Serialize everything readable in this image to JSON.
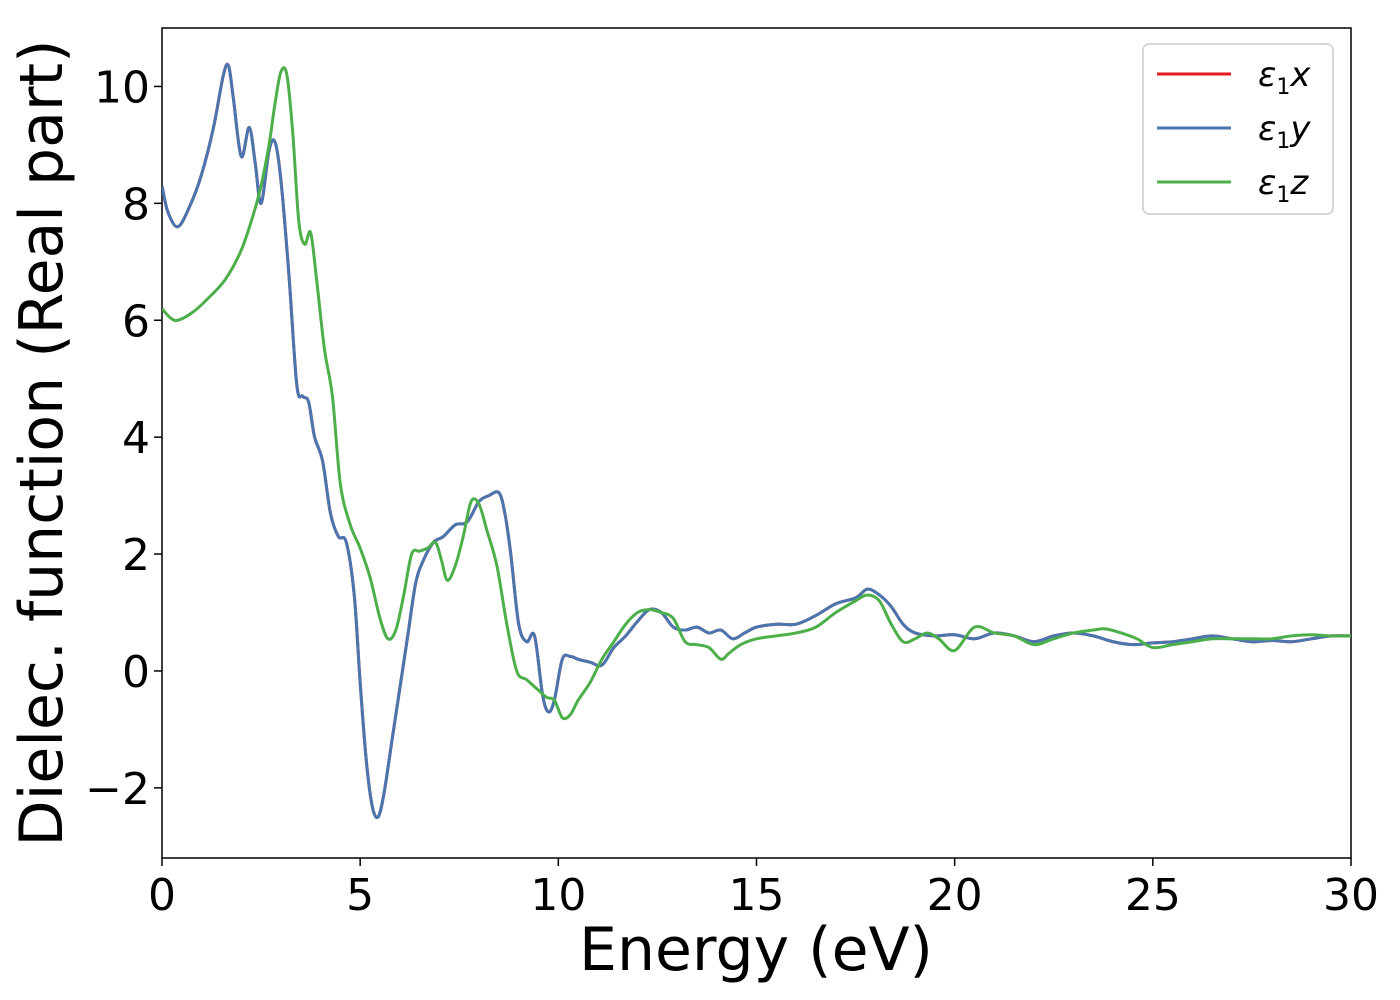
{
  "chart_data": {
    "type": "line",
    "xlabel": "Energy (eV)",
    "ylabel": "Dielec. function (Real part)",
    "xlim": [
      0,
      30
    ],
    "ylim": [
      -3.2,
      11.0
    ],
    "xticks": [
      0,
      5,
      10,
      15,
      20,
      25,
      30
    ],
    "yticks": [
      -2,
      0,
      2,
      4,
      6,
      8,
      10
    ],
    "ytick_labels": [
      "−2",
      "0",
      "2",
      "4",
      "6",
      "8",
      "10"
    ],
    "grid": false,
    "legend": {
      "placement": "top-right"
    },
    "series": [
      {
        "name": "ε1x",
        "legend_main": "ε",
        "legend_sub": "1",
        "legend_var": "x",
        "color": "#e41a1c",
        "x": [
          0,
          0.15,
          0.4,
          0.7,
          1.0,
          1.3,
          1.55,
          1.68,
          1.8,
          2.0,
          2.2,
          2.35,
          2.5,
          2.7,
          2.85,
          3.0,
          3.2,
          3.4,
          3.55,
          3.7,
          3.85,
          4.05,
          4.25,
          4.45,
          4.65,
          4.85,
          5.0,
          5.15,
          5.3,
          5.45,
          5.6,
          5.8,
          6.0,
          6.2,
          6.4,
          6.6,
          6.85,
          7.1,
          7.4,
          7.7,
          8.0,
          8.25,
          8.5,
          8.65,
          8.8,
          9.0,
          9.2,
          9.4,
          9.6,
          9.75,
          9.9,
          10.1,
          10.3,
          10.5,
          10.8,
          11.1,
          11.4,
          11.7,
          12.0,
          12.3,
          12.6,
          12.9,
          13.2,
          13.5,
          13.8,
          14.1,
          14.4,
          14.7,
          15.0,
          15.5,
          16.0,
          16.5,
          17.0,
          17.5,
          17.8,
          18.1,
          18.4,
          18.7,
          19.0,
          19.5,
          20.0,
          20.5,
          21.0,
          21.5,
          22.0,
          22.5,
          23.0,
          23.5,
          24.0,
          24.5,
          25.0,
          25.5,
          26.0,
          26.5,
          27.0,
          27.5,
          28.0,
          28.5,
          29.0,
          29.5,
          30.0
        ],
        "y": [
          8.3,
          7.85,
          7.6,
          7.95,
          8.5,
          9.3,
          10.2,
          10.35,
          9.8,
          8.8,
          9.3,
          8.7,
          8.0,
          8.9,
          9.05,
          8.4,
          6.8,
          4.9,
          4.7,
          4.6,
          4.0,
          3.6,
          2.7,
          2.3,
          2.2,
          1.3,
          -0.2,
          -1.5,
          -2.3,
          -2.5,
          -2.1,
          -1.2,
          -0.3,
          0.6,
          1.5,
          1.9,
          2.2,
          2.3,
          2.5,
          2.55,
          2.9,
          3.0,
          3.05,
          2.7,
          2.0,
          0.8,
          0.5,
          0.6,
          -0.4,
          -0.7,
          -0.5,
          0.2,
          0.25,
          0.2,
          0.15,
          0.1,
          0.4,
          0.6,
          0.85,
          1.05,
          1.0,
          0.75,
          0.7,
          0.75,
          0.65,
          0.7,
          0.55,
          0.65,
          0.75,
          0.8,
          0.8,
          0.95,
          1.15,
          1.25,
          1.4,
          1.3,
          1.1,
          0.8,
          0.65,
          0.6,
          0.62,
          0.55,
          0.65,
          0.6,
          0.5,
          0.6,
          0.65,
          0.6,
          0.5,
          0.45,
          0.48,
          0.5,
          0.55,
          0.6,
          0.55,
          0.5,
          0.52,
          0.5,
          0.55,
          0.6,
          0.6
        ]
      },
      {
        "name": "ε1y",
        "legend_main": "ε",
        "legend_sub": "1",
        "legend_var": "y",
        "color": "#4a76b0",
        "x": [
          0,
          0.15,
          0.4,
          0.7,
          1.0,
          1.3,
          1.55,
          1.68,
          1.8,
          2.0,
          2.2,
          2.35,
          2.5,
          2.7,
          2.85,
          3.0,
          3.2,
          3.4,
          3.55,
          3.7,
          3.85,
          4.05,
          4.25,
          4.45,
          4.65,
          4.85,
          5.0,
          5.15,
          5.3,
          5.45,
          5.6,
          5.8,
          6.0,
          6.2,
          6.4,
          6.6,
          6.85,
          7.1,
          7.4,
          7.7,
          8.0,
          8.25,
          8.5,
          8.65,
          8.8,
          9.0,
          9.2,
          9.4,
          9.6,
          9.75,
          9.9,
          10.1,
          10.3,
          10.5,
          10.8,
          11.1,
          11.4,
          11.7,
          12.0,
          12.3,
          12.6,
          12.9,
          13.2,
          13.5,
          13.8,
          14.1,
          14.4,
          14.7,
          15.0,
          15.5,
          16.0,
          16.5,
          17.0,
          17.5,
          17.8,
          18.1,
          18.4,
          18.7,
          19.0,
          19.5,
          20.0,
          20.5,
          21.0,
          21.5,
          22.0,
          22.5,
          23.0,
          23.5,
          24.0,
          24.5,
          25.0,
          25.5,
          26.0,
          26.5,
          27.0,
          27.5,
          28.0,
          28.5,
          29.0,
          29.5,
          30.0
        ],
        "y": [
          8.3,
          7.85,
          7.6,
          7.95,
          8.5,
          9.3,
          10.2,
          10.35,
          9.8,
          8.8,
          9.3,
          8.7,
          8.0,
          8.9,
          9.05,
          8.4,
          6.8,
          4.9,
          4.7,
          4.6,
          4.0,
          3.6,
          2.7,
          2.3,
          2.2,
          1.3,
          -0.2,
          -1.5,
          -2.3,
          -2.5,
          -2.1,
          -1.2,
          -0.3,
          0.6,
          1.5,
          1.9,
          2.2,
          2.3,
          2.5,
          2.55,
          2.9,
          3.0,
          3.05,
          2.7,
          2.0,
          0.8,
          0.5,
          0.6,
          -0.4,
          -0.7,
          -0.5,
          0.2,
          0.25,
          0.2,
          0.15,
          0.1,
          0.4,
          0.6,
          0.85,
          1.05,
          1.0,
          0.75,
          0.7,
          0.75,
          0.65,
          0.7,
          0.55,
          0.65,
          0.75,
          0.8,
          0.8,
          0.95,
          1.15,
          1.25,
          1.4,
          1.3,
          1.1,
          0.8,
          0.65,
          0.6,
          0.62,
          0.55,
          0.65,
          0.6,
          0.5,
          0.6,
          0.65,
          0.6,
          0.5,
          0.45,
          0.48,
          0.5,
          0.55,
          0.6,
          0.55,
          0.5,
          0.52,
          0.5,
          0.55,
          0.6,
          0.6
        ]
      },
      {
        "name": "ε1z",
        "legend_main": "ε",
        "legend_sub": "1",
        "legend_var": "z",
        "color": "#4daf4a",
        "x": [
          0,
          0.2,
          0.4,
          0.8,
          1.2,
          1.6,
          2.0,
          2.3,
          2.5,
          2.7,
          2.85,
          3.0,
          3.15,
          3.3,
          3.45,
          3.6,
          3.75,
          3.9,
          4.1,
          4.3,
          4.5,
          4.75,
          5.0,
          5.25,
          5.5,
          5.7,
          5.9,
          6.1,
          6.3,
          6.5,
          6.7,
          6.9,
          7.05,
          7.2,
          7.4,
          7.6,
          7.8,
          8.0,
          8.2,
          8.45,
          8.7,
          8.95,
          9.2,
          9.45,
          9.7,
          9.9,
          10.1,
          10.3,
          10.5,
          10.8,
          11.1,
          11.4,
          11.7,
          12.0,
          12.3,
          12.6,
          12.9,
          13.2,
          13.5,
          13.8,
          14.1,
          14.3,
          14.6,
          15.0,
          15.5,
          16.0,
          16.5,
          17.0,
          17.5,
          17.8,
          18.1,
          18.4,
          18.7,
          19.0,
          19.3,
          19.6,
          20.0,
          20.5,
          21.0,
          21.5,
          22.0,
          22.5,
          23.0,
          23.5,
          23.8,
          24.2,
          24.6,
          25.0,
          25.5,
          26.0,
          26.5,
          27.0,
          27.5,
          28.0,
          28.5,
          29.0,
          29.5,
          30.0
        ],
        "y": [
          6.2,
          6.05,
          6.0,
          6.15,
          6.4,
          6.7,
          7.2,
          7.8,
          8.3,
          9.0,
          9.7,
          10.25,
          10.2,
          9.2,
          7.7,
          7.3,
          7.5,
          6.7,
          5.5,
          4.7,
          3.2,
          2.5,
          2.1,
          1.6,
          0.9,
          0.55,
          0.7,
          1.3,
          2.0,
          2.05,
          2.1,
          2.2,
          1.9,
          1.55,
          1.8,
          2.3,
          2.9,
          2.85,
          2.4,
          1.8,
          0.8,
          0.0,
          -0.15,
          -0.3,
          -0.45,
          -0.5,
          -0.8,
          -0.75,
          -0.5,
          -0.2,
          0.2,
          0.5,
          0.8,
          1.0,
          1.05,
          1.0,
          0.9,
          0.5,
          0.45,
          0.4,
          0.2,
          0.3,
          0.45,
          0.55,
          0.6,
          0.65,
          0.75,
          1.0,
          1.2,
          1.3,
          1.2,
          0.8,
          0.5,
          0.55,
          0.65,
          0.55,
          0.35,
          0.75,
          0.65,
          0.6,
          0.45,
          0.55,
          0.65,
          0.7,
          0.72,
          0.65,
          0.55,
          0.4,
          0.45,
          0.5,
          0.55,
          0.55,
          0.55,
          0.55,
          0.6,
          0.62,
          0.6,
          0.6
        ]
      }
    ]
  }
}
